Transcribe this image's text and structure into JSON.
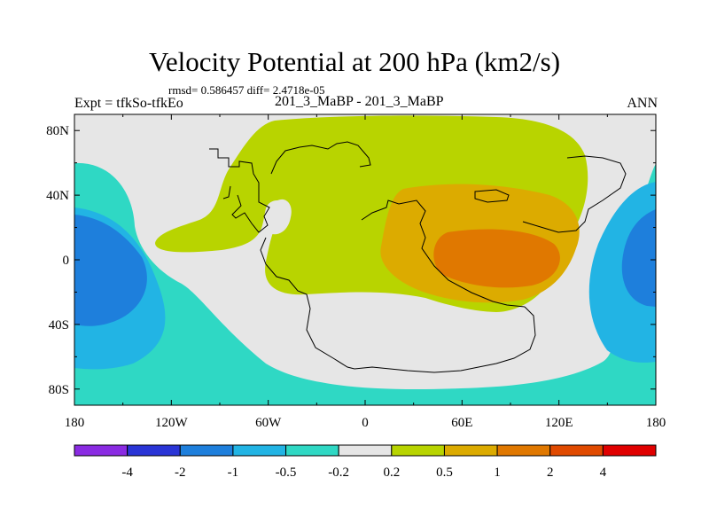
{
  "chart_data": {
    "type": "filled-contour-map",
    "title": "Velocity Potential at 200 hPa (km2/s)",
    "stats": "rmsd= 0.586457 diff= 2.4718e-05",
    "left_label": "Expt = tfkSo-tfkEo",
    "center_label": "201_3_MaBP - 201_3_MaBP",
    "right_label": "ANN",
    "x_ticks": [
      {
        "value": -180,
        "label": "180"
      },
      {
        "value": -120,
        "label": "120W"
      },
      {
        "value": -60,
        "label": "60W"
      },
      {
        "value": 0,
        "label": "0"
      },
      {
        "value": 60,
        "label": "60E"
      },
      {
        "value": 120,
        "label": "120E"
      },
      {
        "value": 180,
        "label": "180"
      }
    ],
    "y_ticks": [
      {
        "value": 80,
        "label": "80N"
      },
      {
        "value": 40,
        "label": "40N"
      },
      {
        "value": 0,
        "label": "0"
      },
      {
        "value": -40,
        "label": "40S"
      },
      {
        "value": -80,
        "label": "80S"
      }
    ],
    "xlim": [
      -180,
      180
    ],
    "ylim": [
      -90,
      90
    ],
    "colorbar": {
      "levels": [
        "-4",
        "-2",
        "-1",
        "-0.5",
        "-0.2",
        "0.2",
        "0.5",
        "1",
        "2",
        "4"
      ],
      "colors": [
        "#8a2be2",
        "#2a35d6",
        "#1e7fdc",
        "#22b4e4",
        "#2fd8c4",
        "#e6e6e6",
        "#b8d400",
        "#dcab00",
        "#e07800",
        "#e04a00",
        "#e00000"
      ]
    }
  }
}
